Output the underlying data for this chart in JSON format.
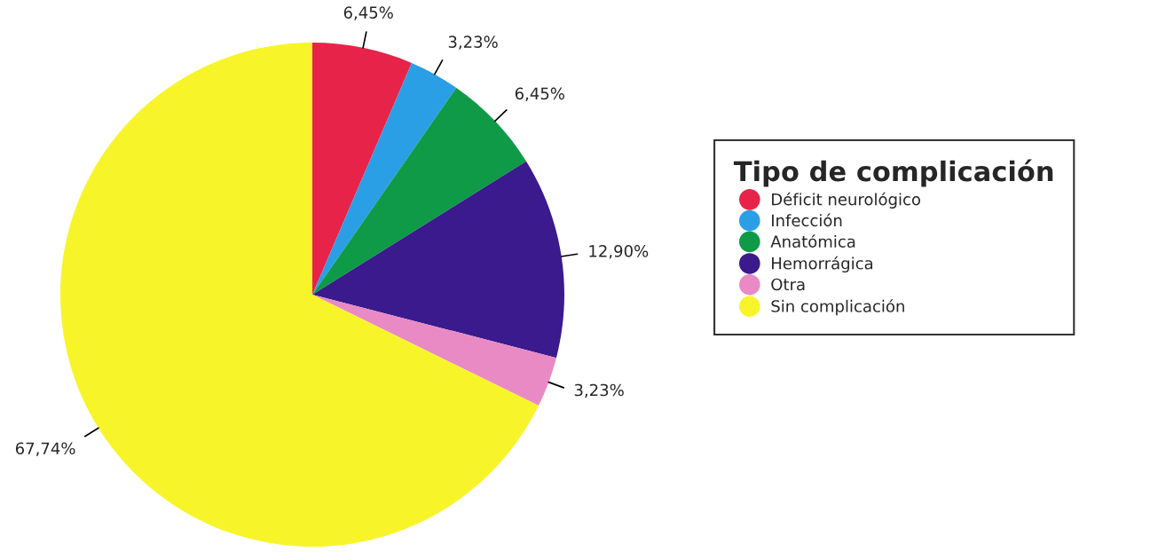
{
  "chart_data": {
    "type": "pie",
    "categories": [
      "Déficit neurológico",
      "Infección",
      "Anatómica",
      "Hemorrágica",
      "Otra",
      "Sin complicación"
    ],
    "values": [
      6.45,
      3.23,
      6.45,
      12.9,
      3.23,
      67.74
    ],
    "colors": [
      "#e8234a",
      "#2a9fe6",
      "#0f9a48",
      "#3a1a8c",
      "#e98ac4",
      "#f7f52a"
    ],
    "value_labels": [
      "6,45%",
      "3,23%",
      "6,45%",
      "12,90%",
      "3,23%",
      "67,74%"
    ],
    "legend_title": "Tipo de complicación",
    "legend": "right"
  }
}
